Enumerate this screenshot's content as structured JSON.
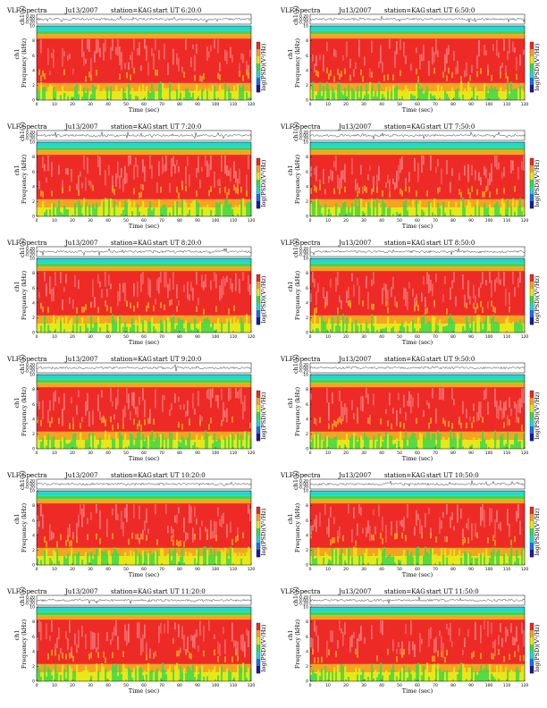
{
  "figure": {
    "header_title": "VLF Spectra",
    "station": "station=KAG",
    "start_prefix": "start  UT",
    "time_label": "Time  (sec)",
    "freq_label": "Frequency  (kHz)",
    "ch_label": "ch1",
    "wave_label": "ch1(V)",
    "cbar_label": "log(PSD)(V²/Hz)",
    "colors": {
      "top": "#22d8d0",
      "red": "#ee2a26",
      "orange": "#f5a422",
      "yellow": "#e8e818",
      "green": "#3ed84a",
      "white": "#ffffff"
    },
    "colorbar_colors": [
      "#ee2a26",
      "#f5a422",
      "#e8e818",
      "#3ed84a",
      "#22d8d0",
      "#1a6ef0",
      "#1a1aa0"
    ]
  },
  "chart_data": [
    {
      "type": "heatmap",
      "date": "Ju13/2007",
      "start": "6:20:0",
      "xlabel": "Time  (sec)",
      "ylabel": "Frequency  (kHz)",
      "xlim": [
        0,
        120
      ],
      "ylim": [
        0,
        10
      ],
      "x_ticks": [
        "0",
        "10",
        "20",
        "30",
        "40",
        "50",
        "60",
        "70",
        "80",
        "90",
        "100",
        "110",
        "120"
      ],
      "y_ticks": [
        "0",
        "2",
        "4",
        "6",
        "8",
        "10"
      ],
      "wave_ticks": [
        "0.20",
        "0.00",
        "-0.20"
      ],
      "colorbar": "log(PSD)(V²/Hz)"
    },
    {
      "type": "heatmap",
      "date": "Ju13/2007",
      "start": "6:50:0",
      "xlabel": "Time  (sec)",
      "ylabel": "Frequency  (kHz)",
      "xlim": [
        0,
        120
      ],
      "ylim": [
        0,
        10
      ],
      "x_ticks": [
        "0",
        "10",
        "20",
        "30",
        "40",
        "50",
        "60",
        "70",
        "80",
        "90",
        "100",
        "110",
        "120"
      ],
      "y_ticks": [
        "0",
        "2",
        "4",
        "6",
        "8",
        "10"
      ],
      "wave_ticks": [
        "0.20",
        "0.00",
        "-0.20"
      ],
      "colorbar": "log(PSD)(V²/Hz)"
    },
    {
      "type": "heatmap",
      "date": "Ju13/2007",
      "start": "7:20:0",
      "xlabel": "Time  (sec)",
      "ylabel": "Frequency  (kHz)",
      "xlim": [
        0,
        120
      ],
      "ylim": [
        0,
        10
      ],
      "x_ticks": [
        "0",
        "10",
        "20",
        "30",
        "40",
        "50",
        "60",
        "70",
        "80",
        "90",
        "100",
        "110",
        "120"
      ],
      "y_ticks": [
        "0",
        "2",
        "4",
        "6",
        "8",
        "10"
      ],
      "wave_ticks": [
        "0.20",
        "0.00",
        "-0.20"
      ],
      "colorbar": "log(PSD)(V²/Hz)"
    },
    {
      "type": "heatmap",
      "date": "Ju13/2007",
      "start": "7:50:0",
      "xlabel": "Time  (sec)",
      "ylabel": "Frequency  (kHz)",
      "xlim": [
        0,
        120
      ],
      "ylim": [
        0,
        10
      ],
      "x_ticks": [
        "0",
        "10",
        "20",
        "30",
        "40",
        "50",
        "60",
        "70",
        "80",
        "90",
        "100",
        "110",
        "120"
      ],
      "y_ticks": [
        "0",
        "2",
        "4",
        "6",
        "8",
        "10"
      ],
      "wave_ticks": [
        "0.20",
        "0.00",
        "-0.20"
      ],
      "colorbar": "log(PSD)(V²/Hz)"
    },
    {
      "type": "heatmap",
      "date": "Ju13/2007",
      "start": "8:20:0",
      "xlabel": "Time  (sec)",
      "ylabel": "Frequency  (kHz)",
      "xlim": [
        0,
        120
      ],
      "ylim": [
        0,
        10
      ],
      "x_ticks": [
        "0",
        "10",
        "20",
        "30",
        "40",
        "50",
        "60",
        "70",
        "80",
        "90",
        "100",
        "110",
        "120"
      ],
      "y_ticks": [
        "0",
        "2",
        "4",
        "6",
        "8",
        "10"
      ],
      "wave_ticks": [
        "0.20",
        "0.00",
        "-0.20"
      ],
      "colorbar": "log(PSD)(V²/Hz)"
    },
    {
      "type": "heatmap",
      "date": "Ju13/2007",
      "start": "8:50:0",
      "xlabel": "Time  (sec)",
      "ylabel": "Frequency  (kHz)",
      "xlim": [
        0,
        120
      ],
      "ylim": [
        0,
        10
      ],
      "x_ticks": [
        "0",
        "10",
        "20",
        "30",
        "40",
        "50",
        "60",
        "70",
        "80",
        "90",
        "100",
        "110",
        "120"
      ],
      "y_ticks": [
        "0",
        "2",
        "4",
        "6",
        "8",
        "10"
      ],
      "wave_ticks": [
        "0.20",
        "0.00",
        "-0.20"
      ],
      "colorbar": "log(PSD)(V²/Hz)"
    },
    {
      "type": "heatmap",
      "date": "Ju13/2007",
      "start": "9:20:0",
      "xlabel": "Time  (sec)",
      "ylabel": "Frequency  (kHz)",
      "xlim": [
        0,
        120
      ],
      "ylim": [
        0,
        10
      ],
      "x_ticks": [
        "0",
        "10",
        "20",
        "30",
        "40",
        "50",
        "60",
        "70",
        "80",
        "90",
        "100",
        "110",
        "120"
      ],
      "y_ticks": [
        "0",
        "2",
        "4",
        "6",
        "8",
        "10"
      ],
      "wave_ticks": [
        "0.20",
        "0.00",
        "-0.20"
      ],
      "colorbar": "log(PSD)(V²/Hz)"
    },
    {
      "type": "heatmap",
      "date": "Ju13/2007",
      "start": "9:50:0",
      "xlabel": "Time  (sec)",
      "ylabel": "Frequency  (kHz)",
      "xlim": [
        0,
        120
      ],
      "ylim": [
        0,
        10
      ],
      "x_ticks": [
        "0",
        "10",
        "20",
        "30",
        "40",
        "50",
        "60",
        "70",
        "80",
        "90",
        "100",
        "110",
        "120"
      ],
      "y_ticks": [
        "0",
        "2",
        "4",
        "6",
        "8",
        "10"
      ],
      "wave_ticks": [
        "0.20",
        "0.00",
        "-0.20"
      ],
      "colorbar": "log(PSD)(V²/Hz)"
    },
    {
      "type": "heatmap",
      "date": "Ju13/2007",
      "start": "10:20:0",
      "xlabel": "Time  (sec)",
      "ylabel": "Frequency  (kHz)",
      "xlim": [
        0,
        120
      ],
      "ylim": [
        0,
        10
      ],
      "x_ticks": [
        "0",
        "10",
        "20",
        "30",
        "40",
        "50",
        "60",
        "70",
        "80",
        "90",
        "100",
        "110",
        "120"
      ],
      "y_ticks": [
        "0",
        "2",
        "4",
        "6",
        "8",
        "10"
      ],
      "wave_ticks": [
        "0.20",
        "0.00",
        "-0.20"
      ],
      "colorbar": "log(PSD)(V²/Hz)"
    },
    {
      "type": "heatmap",
      "date": "Ju13/2007",
      "start": "10:50:0",
      "xlabel": "Time  (sec)",
      "ylabel": "Frequency  (kHz)",
      "xlim": [
        0,
        120
      ],
      "ylim": [
        0,
        10
      ],
      "x_ticks": [
        "0",
        "10",
        "20",
        "30",
        "40",
        "50",
        "60",
        "70",
        "80",
        "90",
        "100",
        "110",
        "120"
      ],
      "y_ticks": [
        "0",
        "2",
        "4",
        "6",
        "8",
        "10"
      ],
      "wave_ticks": [
        "0.20",
        "0.00",
        "-0.20"
      ],
      "colorbar": "log(PSD)(V²/Hz)"
    },
    {
      "type": "heatmap",
      "date": "Ju13/2007",
      "start": "11:20:0",
      "xlabel": "Time  (sec)",
      "ylabel": "Frequency  (kHz)",
      "xlim": [
        0,
        120
      ],
      "ylim": [
        0,
        10
      ],
      "x_ticks": [
        "0",
        "10",
        "20",
        "30",
        "40",
        "50",
        "60",
        "70",
        "80",
        "90",
        "100",
        "110",
        "120"
      ],
      "y_ticks": [
        "0",
        "2",
        "4",
        "6",
        "8",
        "10"
      ],
      "wave_ticks": [
        "0.20",
        "0.00",
        "-0.20"
      ],
      "colorbar": "log(PSD)(V²/Hz)"
    },
    {
      "type": "heatmap",
      "date": "Ju13/2007",
      "start": "11:50:0",
      "xlabel": "Time  (sec)",
      "ylabel": "Frequency  (kHz)",
      "xlim": [
        0,
        120
      ],
      "ylim": [
        0,
        10
      ],
      "x_ticks": [
        "0",
        "10",
        "20",
        "30",
        "40",
        "50",
        "60",
        "70",
        "80",
        "90",
        "100",
        "110",
        "120"
      ],
      "y_ticks": [
        "0",
        "2",
        "4",
        "6",
        "8",
        "10"
      ],
      "wave_ticks": [
        "0.20",
        "0.00",
        "-0.20"
      ],
      "colorbar": "log(PSD)(V²/Hz)"
    }
  ]
}
